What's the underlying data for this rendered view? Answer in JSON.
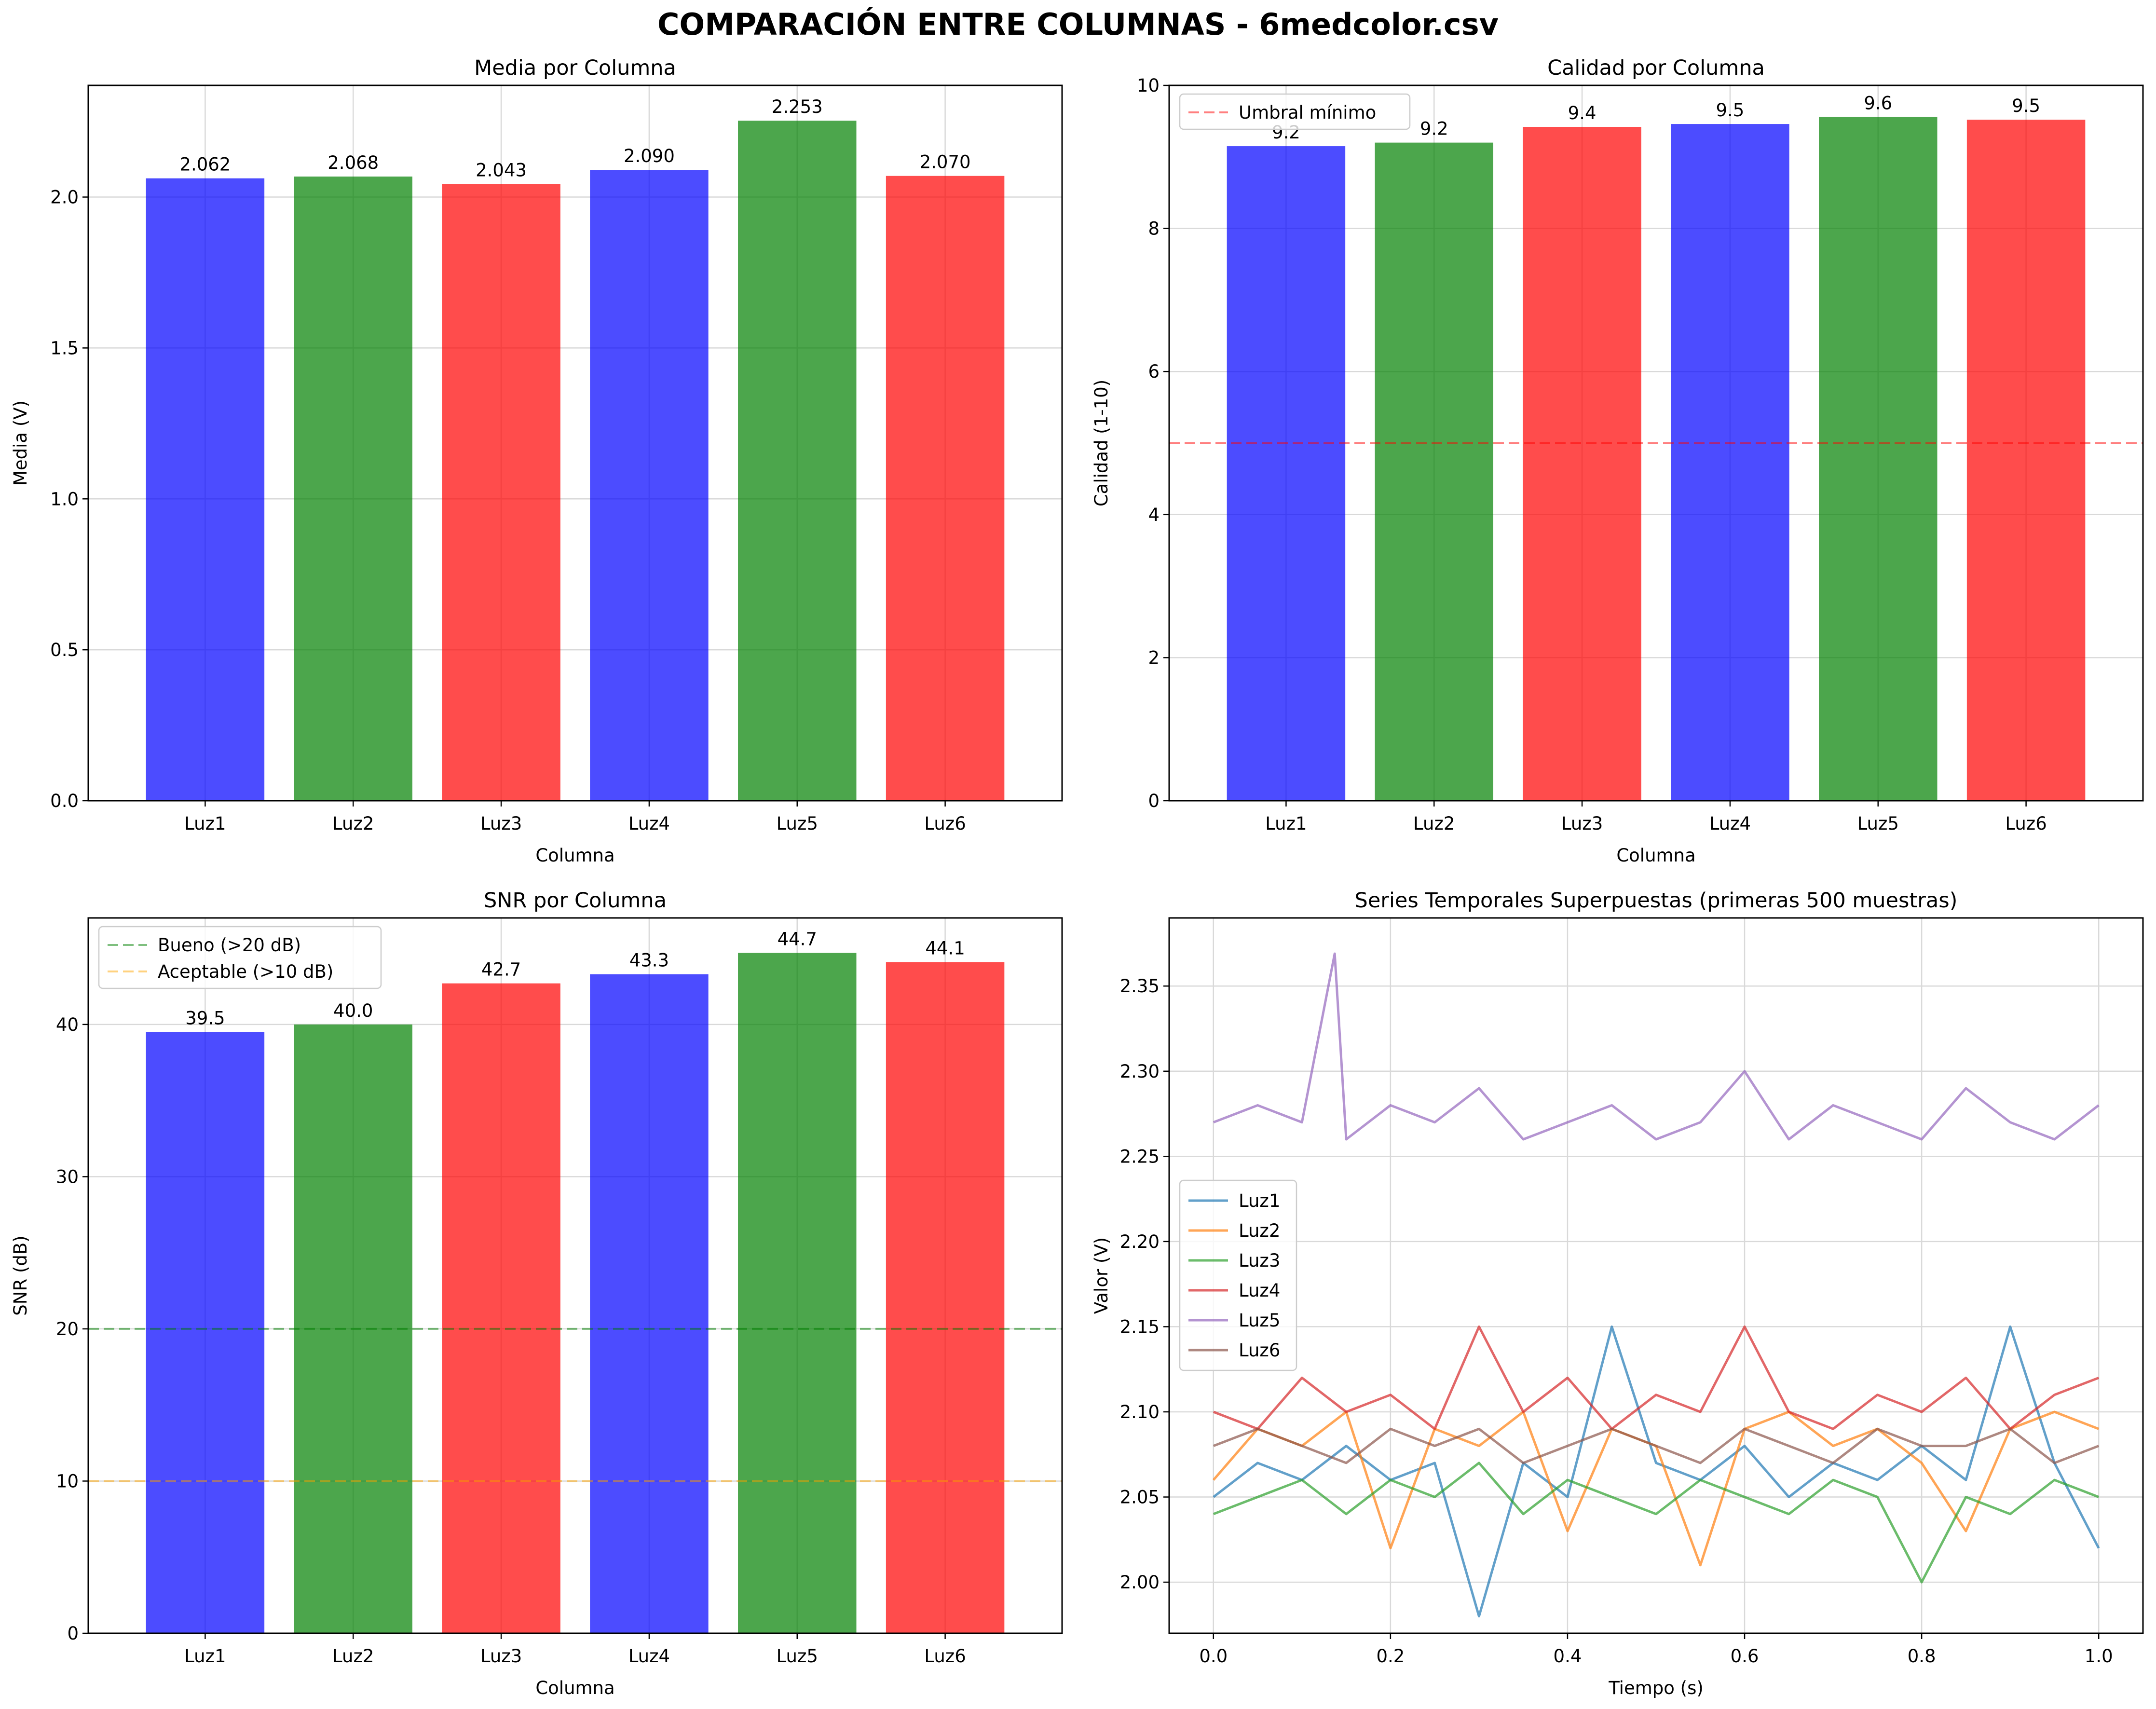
{
  "figure": {
    "title": "COMPARACIÓN ENTRE COLUMNAS - 6medcolor.csv"
  },
  "colors": {
    "blue": "#0000ff",
    "green": "#008000",
    "red": "#ff0000",
    "bar_alpha": 0.7,
    "good_line": "#008000",
    "acceptable_line": "#ffa500",
    "threshold_line": "#ff0000",
    "grid": "#d9d9d9"
  },
  "chart_data": [
    {
      "type": "bar",
      "title": "Media por Columna",
      "xlabel": "Columna",
      "ylabel": "Media (V)",
      "categories": [
        "Luz1",
        "Luz2",
        "Luz3",
        "Luz4",
        "Luz5",
        "Luz6"
      ],
      "values": [
        2.062,
        2.068,
        2.043,
        2.09,
        2.253,
        2.07
      ],
      "value_labels": [
        "2.062",
        "2.068",
        "2.043",
        "2.090",
        "2.253",
        "2.070"
      ],
      "bar_colors": [
        "blue",
        "green",
        "red",
        "blue",
        "green",
        "red"
      ],
      "ylim": [
        0,
        2.37
      ],
      "yticks": [
        0.0,
        0.5,
        1.0,
        1.5,
        2.0
      ],
      "ytick_labels": [
        "0.0",
        "0.5",
        "1.0",
        "1.5",
        "2.0"
      ],
      "grid": true,
      "hlines": []
    },
    {
      "type": "bar",
      "title": "Calidad por Columna",
      "xlabel": "Columna",
      "ylabel": "Calidad (1-10)",
      "categories": [
        "Luz1",
        "Luz2",
        "Luz3",
        "Luz4",
        "Luz5",
        "Luz6"
      ],
      "values": [
        9.15,
        9.2,
        9.42,
        9.46,
        9.56,
        9.52
      ],
      "value_labels": [
        "9.2",
        "9.2",
        "9.4",
        "9.5",
        "9.6",
        "9.5"
      ],
      "bar_colors": [
        "blue",
        "green",
        "red",
        "blue",
        "green",
        "red"
      ],
      "ylim": [
        0,
        10
      ],
      "yticks": [
        0,
        2,
        4,
        6,
        8,
        10
      ],
      "ytick_labels": [
        "0",
        "2",
        "4",
        "6",
        "8",
        "10"
      ],
      "grid": true,
      "hlines": [
        {
          "y": 5,
          "label": "Umbral mínimo",
          "color": "threshold_line"
        }
      ],
      "legend": "upper-left"
    },
    {
      "type": "bar",
      "title": "SNR por Columna",
      "xlabel": "Columna",
      "ylabel": "SNR (dB)",
      "categories": [
        "Luz1",
        "Luz2",
        "Luz3",
        "Luz4",
        "Luz5",
        "Luz6"
      ],
      "values": [
        39.5,
        40.0,
        42.7,
        43.3,
        44.7,
        44.1
      ],
      "value_labels": [
        "39.5",
        "40.0",
        "42.7",
        "43.3",
        "44.7",
        "44.1"
      ],
      "bar_colors": [
        "blue",
        "green",
        "red",
        "blue",
        "green",
        "red"
      ],
      "ylim": [
        0,
        47
      ],
      "yticks": [
        0,
        10,
        20,
        30,
        40
      ],
      "ytick_labels": [
        "0",
        "10",
        "20",
        "30",
        "40"
      ],
      "grid": true,
      "hlines": [
        {
          "y": 20,
          "label": "Bueno (>20 dB)",
          "color": "good_line"
        },
        {
          "y": 10,
          "label": "Aceptable (>10 dB)",
          "color": "acceptable_line"
        }
      ],
      "legend": "upper-left"
    },
    {
      "type": "line",
      "title": "Series Temporales Superpuestas (primeras 500 muestras)",
      "xlabel": "Tiempo (s)",
      "ylabel": "Valor (V)",
      "xlim": [
        -0.05,
        1.05
      ],
      "ylim": [
        1.97,
        2.39
      ],
      "xticks": [
        0.0,
        0.2,
        0.4,
        0.6,
        0.8,
        1.0
      ],
      "xtick_labels": [
        "0.0",
        "0.2",
        "0.4",
        "0.6",
        "0.8",
        "1.0"
      ],
      "yticks": [
        2.0,
        2.05,
        2.1,
        2.15,
        2.2,
        2.25,
        2.3,
        2.35
      ],
      "ytick_labels": [
        "2.00",
        "2.05",
        "2.10",
        "2.15",
        "2.20",
        "2.25",
        "2.30",
        "2.35"
      ],
      "grid": true,
      "legend": "center-left",
      "x": [
        0.0,
        0.05,
        0.1,
        0.15,
        0.2,
        0.25,
        0.3,
        0.35,
        0.4,
        0.45,
        0.5,
        0.55,
        0.6,
        0.65,
        0.7,
        0.75,
        0.8,
        0.85,
        0.9,
        0.95,
        1.0
      ],
      "series": [
        {
          "name": "Luz1",
          "color": "#1f77b4",
          "values": [
            2.05,
            2.07,
            2.06,
            2.08,
            2.06,
            2.07,
            1.98,
            2.07,
            2.05,
            2.15,
            2.07,
            2.06,
            2.08,
            2.05,
            2.07,
            2.06,
            2.08,
            2.06,
            2.15,
            2.07,
            2.02
          ]
        },
        {
          "name": "Luz2",
          "color": "#ff7f0e",
          "values": [
            2.06,
            2.09,
            2.08,
            2.1,
            2.02,
            2.09,
            2.08,
            2.1,
            2.03,
            2.09,
            2.08,
            2.01,
            2.09,
            2.1,
            2.08,
            2.09,
            2.07,
            2.03,
            2.09,
            2.1,
            2.09
          ]
        },
        {
          "name": "Luz3",
          "color": "#2ca02c",
          "values": [
            2.04,
            2.05,
            2.06,
            2.04,
            2.06,
            2.05,
            2.07,
            2.04,
            2.06,
            2.05,
            2.04,
            2.06,
            2.05,
            2.04,
            2.06,
            2.05,
            2.0,
            2.05,
            2.04,
            2.06,
            2.05
          ]
        },
        {
          "name": "Luz4",
          "color": "#d62728",
          "values": [
            2.1,
            2.09,
            2.12,
            2.1,
            2.11,
            2.09,
            2.15,
            2.1,
            2.12,
            2.09,
            2.11,
            2.1,
            2.15,
            2.1,
            2.09,
            2.11,
            2.1,
            2.12,
            2.09,
            2.11,
            2.12
          ]
        },
        {
          "name": "Luz5",
          "color": "#9467bd",
          "values": [
            2.27,
            2.28,
            2.27,
            2.26,
            2.28,
            2.27,
            2.29,
            2.26,
            2.27,
            2.28,
            2.26,
            2.27,
            2.3,
            2.26,
            2.28,
            2.27,
            2.26,
            2.29,
            2.27,
            2.26,
            2.28
          ]
        },
        {
          "name": "Luz6",
          "color": "#8c564b",
          "values": [
            2.08,
            2.09,
            2.08,
            2.07,
            2.09,
            2.08,
            2.09,
            2.07,
            2.08,
            2.09,
            2.08,
            2.07,
            2.09,
            2.08,
            2.07,
            2.09,
            2.08,
            2.08,
            2.09,
            2.07,
            2.08
          ]
        }
      ],
      "spike": {
        "series": "Luz5",
        "x": 0.137,
        "y": 2.369
      }
    }
  ]
}
